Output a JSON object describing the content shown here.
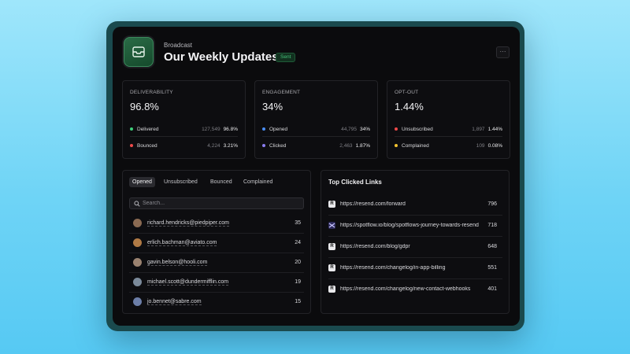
{
  "header": {
    "eyebrow": "Broadcast",
    "title": "Our Weekly Updates",
    "status": "Sent",
    "more_label": "···"
  },
  "stats": [
    {
      "label": "DELIVERABILITY",
      "value": "96.8%",
      "rows": [
        {
          "name": "Delivered",
          "count": "127,549",
          "pct": "96.8%",
          "color": "#3ecf7a"
        },
        {
          "name": "Bounced",
          "count": "4,224",
          "pct": "3.21%",
          "color": "#ef4a4a"
        }
      ]
    },
    {
      "label": "ENGAGEMENT",
      "value": "34%",
      "rows": [
        {
          "name": "Opened",
          "count": "44,795",
          "pct": "34%",
          "color": "#4a8ef5"
        },
        {
          "name": "Clicked",
          "count": "2,463",
          "pct": "1.87%",
          "color": "#8a7cf0"
        }
      ]
    },
    {
      "label": "OPT-OUT",
      "value": "1.44%",
      "rows": [
        {
          "name": "Unsubscribed",
          "count": "1,897",
          "pct": "1.44%",
          "color": "#ef4a4a"
        },
        {
          "name": "Complained",
          "count": "109",
          "pct": "0.08%",
          "color": "#f2c230"
        }
      ]
    }
  ],
  "recipients": {
    "tabs": [
      "Opened",
      "Unsubscribed",
      "Bounced",
      "Complained"
    ],
    "active_tab": "Opened",
    "search_placeholder": "Search...",
    "rows": [
      {
        "email": "richard.hendricks@piedpiper.com",
        "count": "35",
        "avatar_color": "#8a6a52"
      },
      {
        "email": "erlich.bachman@aviato.com",
        "count": "24",
        "avatar_color": "#b07a45"
      },
      {
        "email": "gavin.belson@hooli.com",
        "count": "20",
        "avatar_color": "#9a8270"
      },
      {
        "email": "michael.scott@dundermifflin.com",
        "count": "19",
        "avatar_color": "#7b8a9a"
      },
      {
        "email": "jo.bennet@sabre.com",
        "count": "15",
        "avatar_color": "#6c7ea8"
      }
    ]
  },
  "links": {
    "title": "Top Clicked Links",
    "rows": [
      {
        "favicon": "R",
        "url": "https://resend.com/forward",
        "count": "796"
      },
      {
        "favicon": "",
        "url": "https://spotflow.io/blog/spotflows-journey-towards-resend",
        "count": "718"
      },
      {
        "favicon": "R",
        "url": "https://resend.com/blog/gdpr",
        "count": "648"
      },
      {
        "favicon": "R",
        "url": "https://resend.com/changelog/in-app-billing",
        "count": "551"
      },
      {
        "favicon": "R",
        "url": "https://resend.com/changelog/new-contact-webhooks",
        "count": "401"
      }
    ]
  }
}
